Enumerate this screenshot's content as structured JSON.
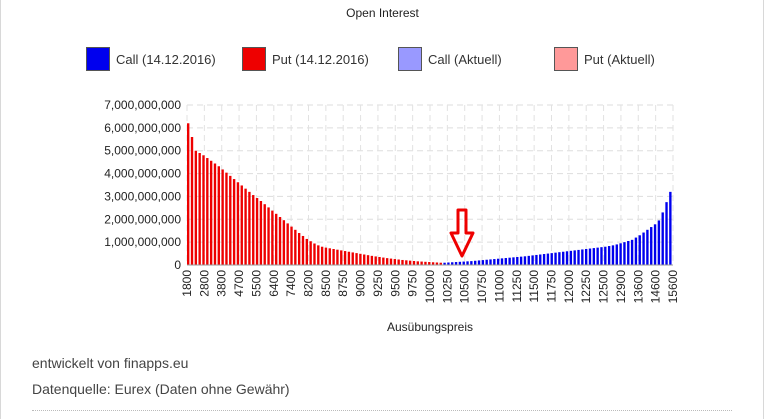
{
  "chart_data": {
    "type": "bar",
    "title": "Open Interest",
    "xlabel": "Ausübungspreis",
    "ylabel": "",
    "ylim": [
      0,
      7000000000
    ],
    "y_ticks": [
      "7,000,000,000",
      "6,000,000,000",
      "5,000,000,000",
      "4,000,000,000",
      "3,000,000,000",
      "2,000,000,000",
      "1,000,000,000",
      "0"
    ],
    "x_tick_labels": [
      "1800",
      "2800",
      "3800",
      "4700",
      "5500",
      "6400",
      "7400",
      "8200",
      "8500",
      "8750",
      "9000",
      "9250",
      "9500",
      "9750",
      "10000",
      "10250",
      "10500",
      "10750",
      "11000",
      "11250",
      "11500",
      "11750",
      "12000",
      "12250",
      "12500",
      "12900",
      "13600",
      "14600",
      "15600"
    ],
    "grid": true,
    "legend_position": "top",
    "series": [
      {
        "name": "Call (14.12.2016)",
        "color": "#0000ee"
      },
      {
        "name": "Put (14.12.2016)",
        "color": "#ee0000"
      },
      {
        "name": "Call (Aktuell)",
        "color": "#9999ff"
      },
      {
        "name": "Put (Aktuell)",
        "color": "#ff9999"
      }
    ],
    "put_values": [
      6200000000,
      5600000000,
      5000000000,
      4900000000,
      4800000000,
      4680000000,
      4560000000,
      4440000000,
      4320000000,
      4180000000,
      4040000000,
      3900000000,
      3760000000,
      3620000000,
      3480000000,
      3340000000,
      3200000000,
      3060000000,
      2930000000,
      2800000000,
      2660000000,
      2520000000,
      2380000000,
      2240000000,
      2100000000,
      1960000000,
      1820000000,
      1680000000,
      1540000000,
      1400000000,
      1270000000,
      1140000000,
      1040000000,
      940000000,
      860000000,
      800000000,
      760000000,
      730000000,
      700000000,
      670000000,
      640000000,
      610000000,
      580000000,
      550000000,
      520000000,
      490000000,
      460000000,
      430000000,
      400000000,
      375000000,
      350000000,
      325000000,
      300000000,
      280000000,
      260000000,
      240000000,
      220000000,
      205000000,
      190000000,
      175000000,
      160000000,
      150000000,
      140000000,
      130000000,
      120000000,
      110000000,
      100000000
    ],
    "call_values": [
      100000000,
      110000000,
      120000000,
      130000000,
      140000000,
      150000000,
      160000000,
      170000000,
      185000000,
      200000000,
      215000000,
      230000000,
      245000000,
      260000000,
      275000000,
      290000000,
      305000000,
      320000000,
      335000000,
      350000000,
      365000000,
      380000000,
      400000000,
      420000000,
      440000000,
      460000000,
      480000000,
      500000000,
      520000000,
      540000000,
      560000000,
      580000000,
      600000000,
      620000000,
      640000000,
      660000000,
      680000000,
      700000000,
      720000000,
      740000000,
      760000000,
      780000000,
      800000000,
      830000000,
      860000000,
      900000000,
      950000000,
      1000000000,
      1050000000,
      1100000000,
      1200000000,
      1300000000,
      1420000000,
      1540000000,
      1660000000,
      1780000000,
      1950000000,
      2300000000,
      2750000000,
      3200000000
    ],
    "annotation": "arrow",
    "annotation_color": "#ee0000"
  },
  "footer": {
    "developer": "entwickelt von finapps.eu",
    "source": "Datenquelle: Eurex (Daten ohne Gewähr)"
  }
}
